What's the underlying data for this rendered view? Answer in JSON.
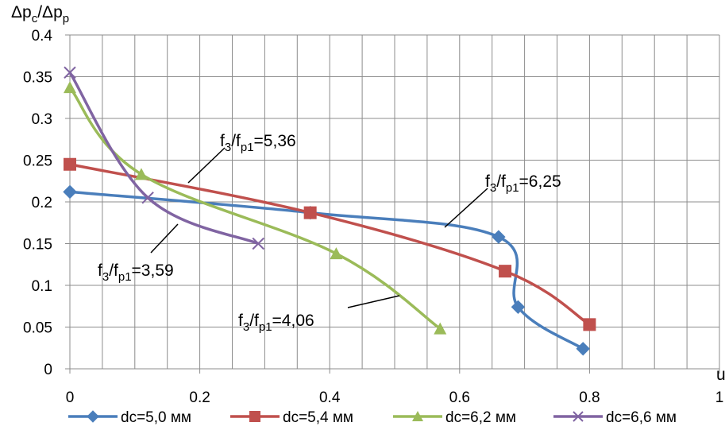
{
  "chart_data": {
    "type": "line",
    "ylabel_parts": [
      "Δp",
      "c",
      "/Δp",
      "p"
    ],
    "xlabel": "u",
    "xlim": [
      0,
      1
    ],
    "ylim": [
      0,
      0.4
    ],
    "x_ticks": [
      "0",
      "0.2",
      "0.4",
      "0.6",
      "0.8",
      "1"
    ],
    "y_ticks": [
      "0",
      "0.05",
      "0.1",
      "0.15",
      "0.2",
      "0.25",
      "0.3",
      "0.35",
      "0.4"
    ],
    "x_tick_values": [
      0,
      0.2,
      0.4,
      0.6,
      0.8,
      1
    ],
    "y_tick_values": [
      0,
      0.05,
      0.1,
      0.15,
      0.2,
      0.25,
      0.3,
      0.35,
      0.4
    ],
    "grid": true,
    "legend_position": "bottom",
    "series": [
      {
        "name": "dc=5,0 мм",
        "color": "#4a7ebb",
        "marker": "diamond",
        "x": [
          0,
          0.37,
          0.66,
          0.69,
          0.79
        ],
        "y": [
          0.212,
          0.187,
          0.158,
          0.074,
          0.024
        ]
      },
      {
        "name": "dc=5,4 мм",
        "color": "#c0504d",
        "marker": "square",
        "x": [
          0,
          0.37,
          0.67,
          0.8
        ],
        "y": [
          0.245,
          0.187,
          0.117,
          0.053
        ]
      },
      {
        "name": "dc=6,2 мм",
        "color": "#9bbb59",
        "marker": "triangle",
        "x": [
          0,
          0.11,
          0.41,
          0.57
        ],
        "y": [
          0.337,
          0.233,
          0.138,
          0.048
        ]
      },
      {
        "name": "dc=6,6 мм",
        "color": "#8064a2",
        "marker": "x",
        "x": [
          0,
          0.12,
          0.29
        ],
        "y": [
          0.355,
          0.205,
          0.15
        ]
      }
    ],
    "annotations": [
      {
        "parts": [
          "f",
          "3",
          "/f",
          "p1",
          "=5,36"
        ]
      },
      {
        "parts": [
          "f",
          "3",
          "/f",
          "p1",
          "=6,25"
        ]
      },
      {
        "parts": [
          "f",
          "3",
          "/f",
          "p1",
          "=3,59"
        ]
      },
      {
        "parts": [
          "f",
          "3",
          "/f",
          "p1",
          "=4,06"
        ]
      }
    ]
  }
}
